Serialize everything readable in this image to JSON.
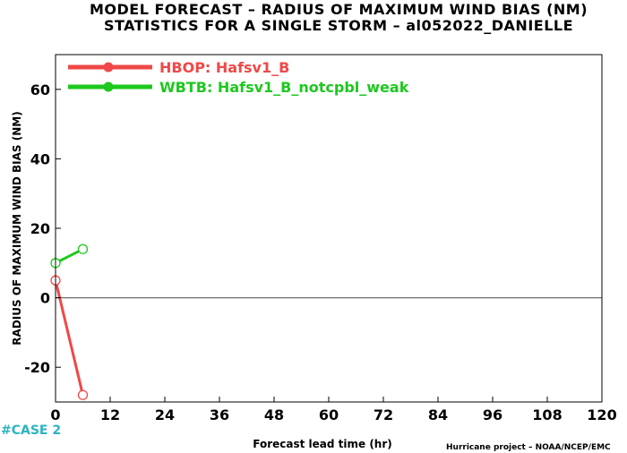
{
  "title_line1": "MODEL FORECAST – RADIUS OF MAXIMUM WIND BIAS (NM)",
  "title_line2": "STATISTICS FOR A SINGLE STORM – al052022_DANIELLE",
  "case_label": "#CASE  2",
  "footer_note": "Hurricane project – NOAA/NCEP/EMC",
  "chart_data": {
    "type": "line",
    "title": "MODEL FORECAST – RADIUS OF MAXIMUM WIND BIAS (NM)",
    "subtitle": "STATISTICS FOR A SINGLE STORM – al052022_DANIELLE",
    "xlabel": "Forecast lead time (hr)",
    "ylabel": "RADIUS OF MAXIMUM WIND BIAS (NM)",
    "xlim": [
      0,
      120
    ],
    "ylim": [
      -30,
      70
    ],
    "xticks": [
      "0",
      "12",
      "24",
      "36",
      "48",
      "60",
      "72",
      "84",
      "96",
      "108",
      "120"
    ],
    "yticks": [
      "60",
      "40",
      "20",
      "0",
      "-20"
    ],
    "xtick_values": [
      0,
      12,
      24,
      36,
      48,
      60,
      72,
      84,
      96,
      108,
      120
    ],
    "ytick_values": [
      60,
      40,
      20,
      0,
      -20
    ],
    "zero_line": true,
    "grid": false,
    "legend_position": "top-left",
    "series": [
      {
        "name": "HBOP: Hafsv1_B",
        "color": "#f04848",
        "x": [
          0,
          6
        ],
        "y": [
          5,
          -28
        ]
      },
      {
        "name": "WBTB: Hafsv1_B_notcpbl_weak",
        "color": "#1ec81e",
        "x": [
          0,
          6
        ],
        "y": [
          10,
          14
        ]
      }
    ]
  }
}
